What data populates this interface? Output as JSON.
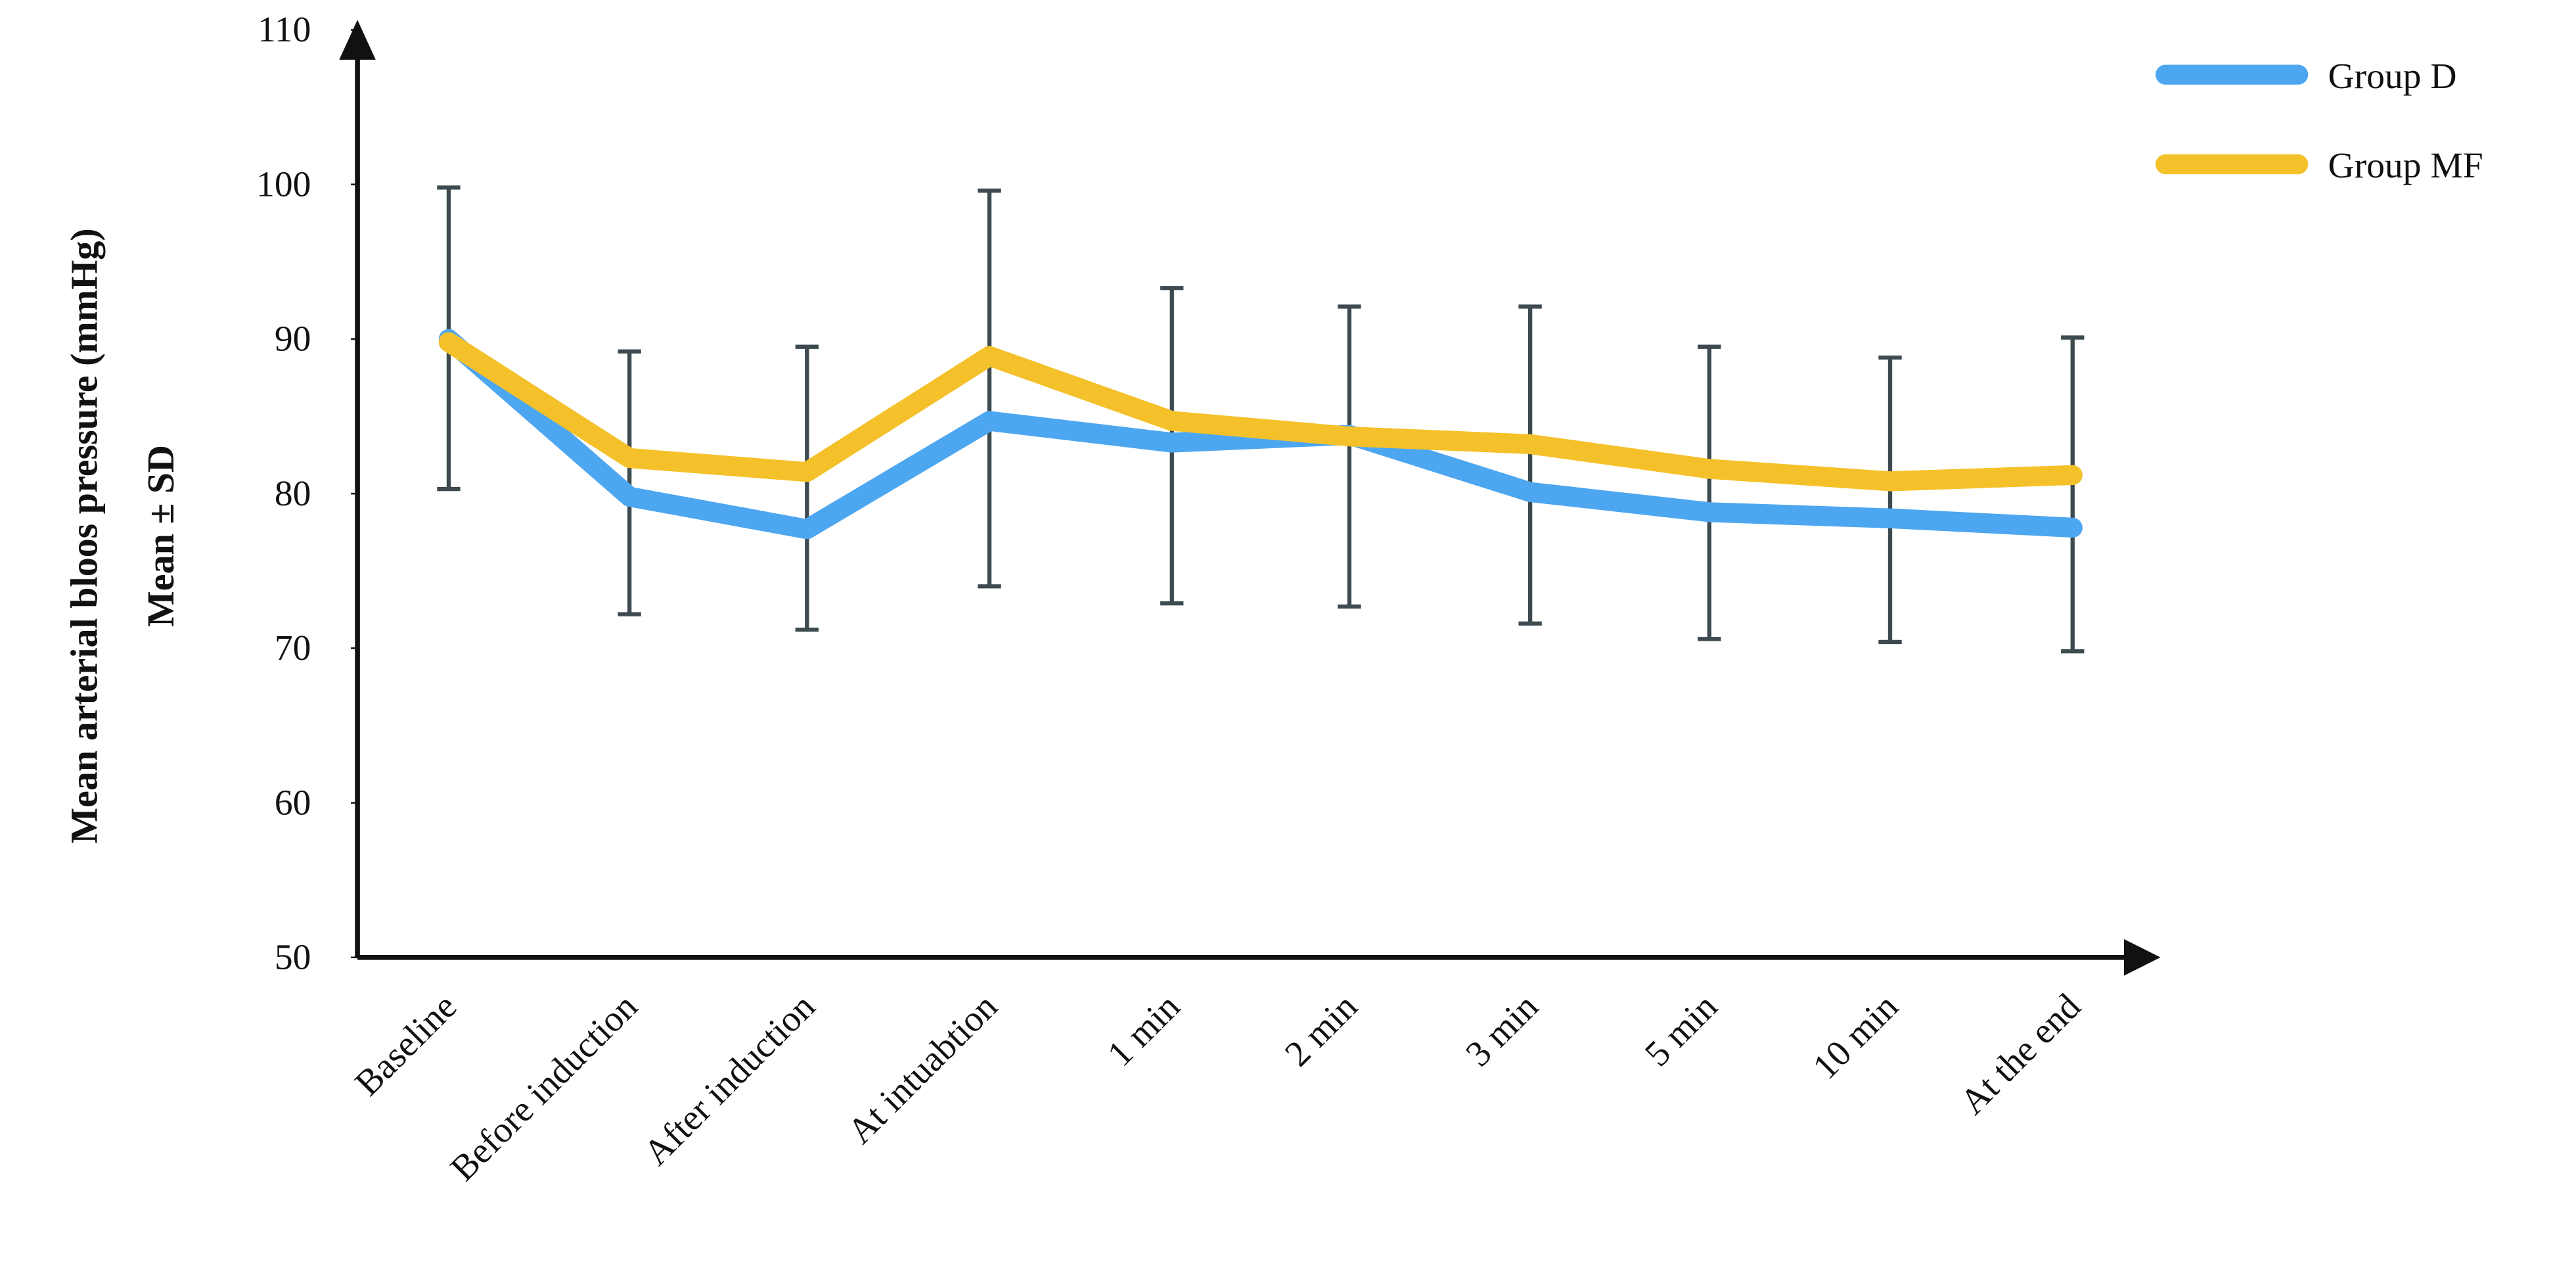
{
  "chart_data": {
    "type": "line",
    "y_label": [
      "Mean arterial bloos pressure (mmHg)",
      "Mean ± SD"
    ],
    "categories": [
      "Baseline",
      "Before induction",
      "After induction",
      "At intuabtion",
      "1 min",
      "2 min",
      "3 min",
      "5 min",
      "10 min",
      "At the end"
    ],
    "series": [
      {
        "name": "Group D",
        "color": "#4da6f0",
        "values": [
          90,
          79.8,
          77.7,
          84.7,
          83.3,
          83.8,
          80.1,
          78.8,
          78.4,
          77.8
        ]
      },
      {
        "name": "Group MF",
        "color": "#f5c12a",
        "values": [
          89.8,
          82.3,
          81.4,
          88.9,
          84.7,
          83.7,
          83.2,
          81.6,
          80.8,
          81.2
        ]
      }
    ],
    "error_bars": {
      "color": "#3d4a4f",
      "upper": [
        99.8,
        89.2,
        89.5,
        99.6,
        93.3,
        92.1,
        92.1,
        89.5,
        88.8,
        90.1
      ],
      "lower": [
        80.3,
        72.2,
        71.2,
        74.0,
        72.9,
        72.7,
        71.6,
        70.6,
        70.4,
        69.8
      ]
    },
    "ylim": [
      50,
      110
    ],
    "yticks": [
      50,
      60,
      70,
      80,
      90,
      100,
      110
    ],
    "grid": false,
    "legend": "top-right"
  }
}
